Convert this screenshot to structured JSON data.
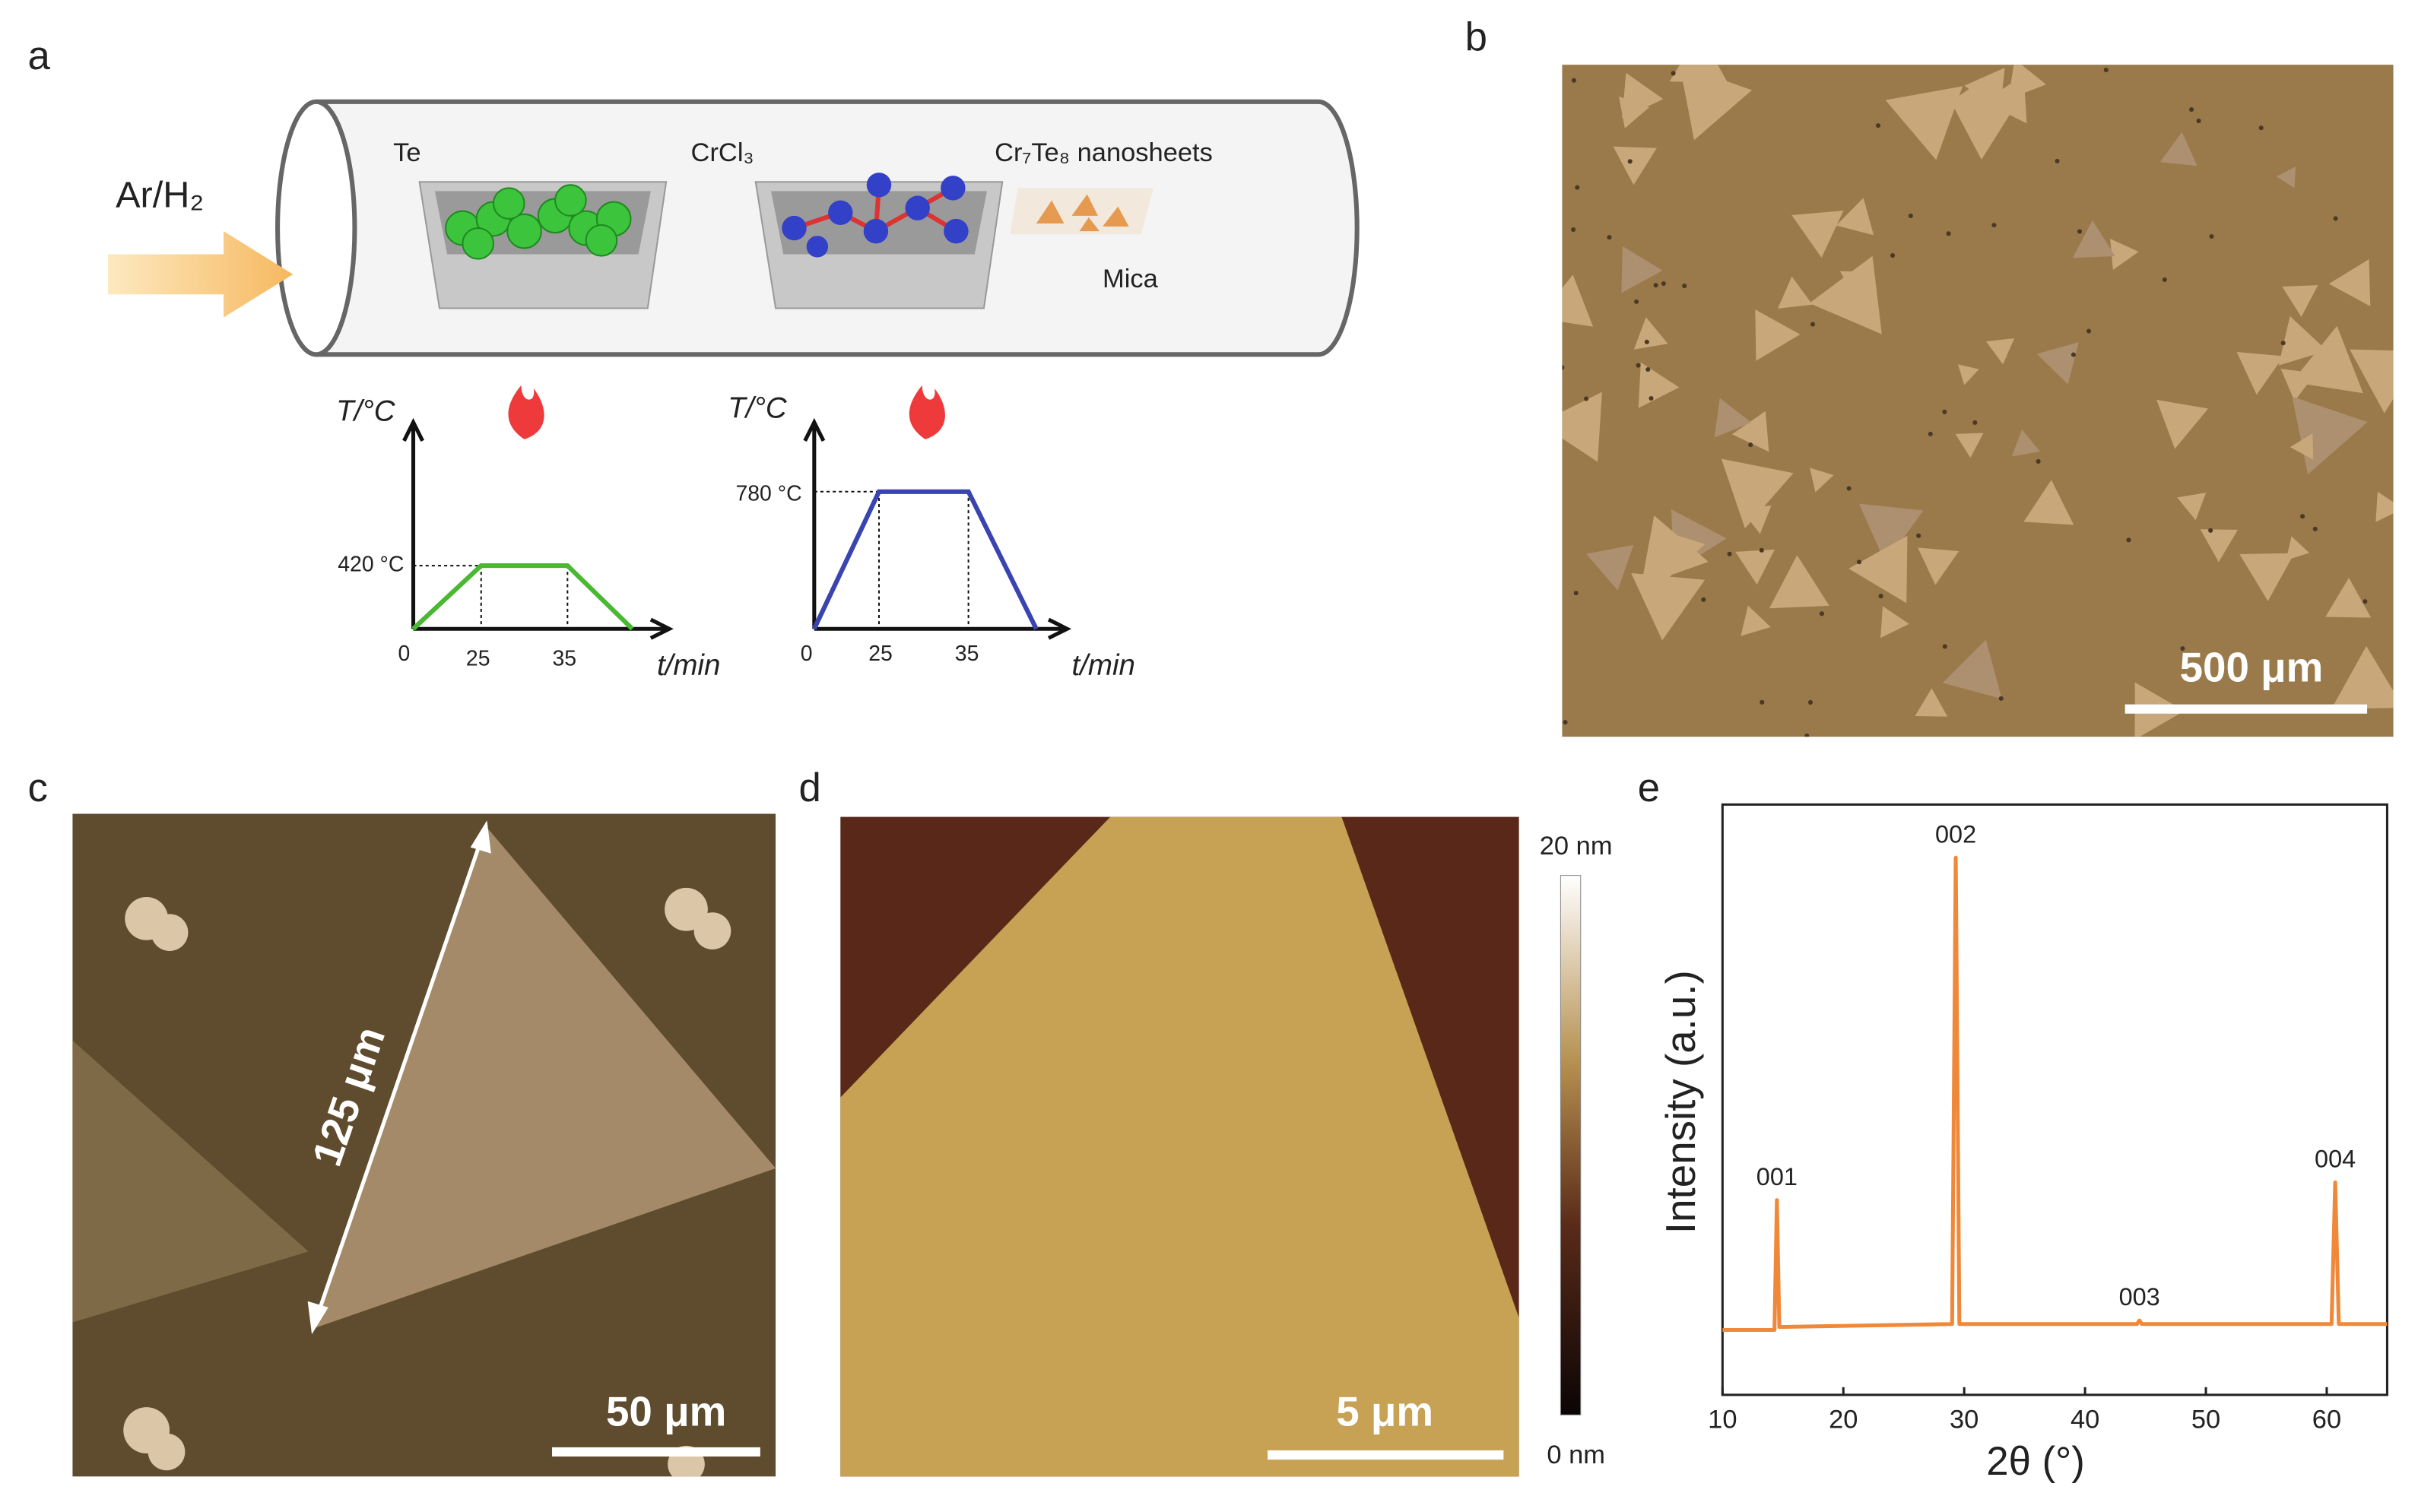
{
  "panel_a": {
    "label": "a",
    "gas": "Ar/H₂",
    "precursor_1": "Te",
    "precursor_2": "CrCl₃",
    "product": "Cr₇Te₈ nanosheets",
    "substrate": "Mica",
    "profile_1": {
      "y_label": "T/°C",
      "x_label": "t/min",
      "temperature": "420 °C",
      "x_ticks": [
        0,
        25,
        35
      ]
    },
    "profile_2": {
      "y_label": "T/°C",
      "x_label": "t/min",
      "temperature": "780 °C",
      "x_ticks": [
        0,
        25,
        35
      ]
    }
  },
  "panel_b": {
    "label": "b",
    "scale_bar": "500 μm"
  },
  "panel_c": {
    "label": "c",
    "length": "125 μm",
    "scale_bar": "50 μm"
  },
  "panel_d": {
    "label": "d",
    "scale_bar": "5 μm",
    "colorbar_max": "20 nm",
    "colorbar_min": "0 nm"
  },
  "panel_e": {
    "label": "e"
  },
  "chart_data": {
    "type": "line",
    "x_label": "2θ (°)",
    "y_label": "Intensity (a.u.)",
    "x": [
      10,
      14.3,
      14.5,
      14.7,
      29.0,
      29.3,
      29.6,
      44.3,
      44.5,
      44.7,
      60.4,
      60.7,
      61.0,
      65
    ],
    "values": [
      11,
      11,
      33,
      11.5,
      12,
      91,
      12,
      12,
      12.6,
      12,
      12,
      36,
      12,
      12
    ],
    "color": "#f0883a",
    "xlim": [
      10,
      65
    ],
    "xticks": [
      10,
      20,
      30,
      40,
      50,
      60
    ],
    "ylim": [
      0,
      100
    ],
    "annotations": [
      {
        "text": "001",
        "x": 14.5,
        "y": 33
      },
      {
        "text": "002",
        "x": 29.3,
        "y": 91
      },
      {
        "text": "003",
        "x": 44.5,
        "y": 12.6
      },
      {
        "text": "004",
        "x": 60.7,
        "y": 36
      }
    ]
  }
}
